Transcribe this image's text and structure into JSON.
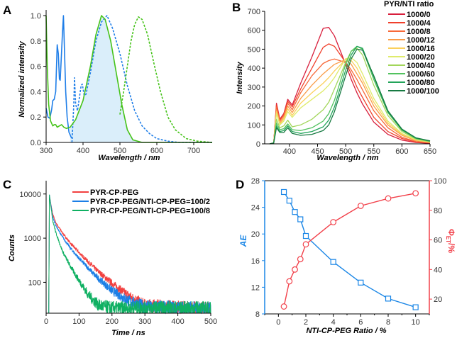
{
  "chart_data": [
    {
      "panel": "A",
      "type": "line",
      "xlabel": "Wavelength / nm",
      "ylabel": "Normalized intensity",
      "xlim": [
        300,
        750
      ],
      "ylim": [
        0,
        1.0
      ],
      "xticks": [
        300,
        400,
        500,
        600,
        700
      ],
      "yticks": [
        "0.0",
        "0.2",
        "0.4",
        "0.6",
        "0.8",
        "1.0"
      ],
      "colors": {
        "blue": "#1f7ee8",
        "green": "#46c31a",
        "fill": "#daeefa"
      },
      "series": [
        {
          "name": "blue-solid",
          "style": "solid",
          "color": "#1f7ee8",
          "x": [
            300,
            305,
            310,
            315,
            318,
            322,
            326,
            330,
            333,
            336,
            338,
            340,
            344,
            347,
            350,
            353,
            357,
            362,
            368,
            372
          ],
          "y": [
            0.27,
            0.2,
            0.19,
            0.26,
            0.33,
            0.34,
            0.4,
            0.77,
            0.7,
            0.5,
            0.49,
            0.6,
            0.85,
            1.0,
            0.7,
            0.4,
            0.2,
            0.08,
            0.04,
            0.03
          ]
        },
        {
          "name": "blue-dashed",
          "style": "dashed",
          "color": "#1f7ee8",
          "x": [
            370,
            375,
            377,
            380,
            385,
            390,
            395,
            398,
            403,
            408,
            420,
            435,
            450,
            465,
            480,
            500,
            520,
            540,
            560,
            580,
            600,
            630,
            660,
            750
          ],
          "y": [
            0.0,
            0.3,
            0.51,
            0.3,
            0.25,
            0.35,
            0.45,
            0.46,
            0.37,
            0.38,
            0.55,
            0.8,
            0.95,
            1.0,
            0.9,
            0.7,
            0.45,
            0.25,
            0.13,
            0.07,
            0.03,
            0.01,
            0.0,
            0.0
          ]
        },
        {
          "name": "green-solid",
          "style": "solid",
          "color": "#46c31a",
          "filled_from": 362,
          "x": [
            300,
            303,
            307,
            312,
            318,
            322,
            326,
            330,
            336,
            342,
            348,
            355,
            365,
            380,
            400,
            420,
            435,
            450,
            460,
            475,
            490,
            505,
            520,
            535,
            560,
            750
          ],
          "y": [
            1.0,
            0.6,
            0.3,
            0.17,
            0.13,
            0.14,
            0.14,
            0.12,
            0.13,
            0.14,
            0.12,
            0.11,
            0.12,
            0.18,
            0.33,
            0.6,
            0.85,
            1.0,
            0.97,
            0.8,
            0.55,
            0.3,
            0.1,
            0.02,
            0.0,
            0.0
          ]
        },
        {
          "name": "green-dashed",
          "style": "dashed",
          "color": "#46c31a",
          "x": [
            500,
            510,
            520,
            530,
            540,
            550,
            560,
            575,
            590,
            610,
            630,
            650,
            680,
            710,
            750
          ],
          "y": [
            0.22,
            0.4,
            0.6,
            0.8,
            0.93,
            0.99,
            0.97,
            0.85,
            0.65,
            0.4,
            0.2,
            0.1,
            0.03,
            0.01,
            0.0
          ]
        }
      ]
    },
    {
      "panel": "B",
      "type": "line",
      "xlabel": "Wavelength / nm",
      "ylabel": "Intensity",
      "xlim": [
        356,
        650
      ],
      "ylim": [
        0,
        700
      ],
      "xticks": [
        400,
        450,
        500,
        550,
        600,
        650
      ],
      "yticks": [
        0,
        100,
        200,
        300,
        400,
        500,
        600,
        700
      ],
      "legend_title": "PYR/NTI ratio",
      "legend_position": "top-right",
      "x": [
        365,
        372,
        377,
        383,
        390,
        397,
        405,
        420,
        440,
        460,
        470,
        480,
        500,
        510,
        520,
        530,
        550,
        575,
        600,
        625,
        650
      ],
      "series": [
        {
          "name": "1000/0",
          "color": "#d81e3c",
          "values": [
            0,
            5,
            215,
            130,
            160,
            235,
            205,
            320,
            460,
            610,
            615,
            570,
            420,
            340,
            270,
            210,
            115,
            50,
            20,
            7,
            3
          ]
        },
        {
          "name": "1000/4",
          "color": "#f0402c",
          "values": [
            0,
            5,
            205,
            125,
            155,
            225,
            195,
            290,
            400,
            510,
            528,
            515,
            430,
            370,
            300,
            245,
            140,
            65,
            28,
            10,
            5
          ]
        },
        {
          "name": "1000/8",
          "color": "#f76a3a",
          "values": [
            0,
            5,
            195,
            120,
            150,
            215,
            180,
            270,
            360,
            425,
            440,
            448,
            430,
            390,
            340,
            285,
            175,
            85,
            35,
            12,
            6
          ]
        },
        {
          "name": "1000/12",
          "color": "#f99c48",
          "values": [
            0,
            5,
            180,
            110,
            140,
            200,
            165,
            240,
            310,
            370,
            395,
            420,
            445,
            420,
            370,
            320,
            200,
            100,
            45,
            17,
            8
          ]
        },
        {
          "name": "1000/16",
          "color": "#fbd05c",
          "values": [
            0,
            5,
            170,
            105,
            130,
            185,
            150,
            215,
            270,
            320,
            350,
            385,
            445,
            440,
            400,
            340,
            220,
            110,
            50,
            20,
            9
          ]
        },
        {
          "name": "1000/20",
          "color": "#dfeb6c",
          "values": [
            0,
            5,
            160,
            100,
            120,
            170,
            140,
            190,
            235,
            280,
            310,
            350,
            450,
            455,
            430,
            370,
            240,
            120,
            55,
            22,
            10
          ]
        },
        {
          "name": "1000/40",
          "color": "#a2d65a",
          "values": [
            0,
            5,
            130,
            85,
            95,
            125,
            90,
            100,
            130,
            180,
            220,
            290,
            430,
            490,
            505,
            470,
            310,
            150,
            65,
            25,
            12
          ]
        },
        {
          "name": "1000/60",
          "color": "#52c25e",
          "values": [
            0,
            5,
            110,
            75,
            80,
            105,
            75,
            70,
            85,
            120,
            160,
            230,
            420,
            490,
            515,
            500,
            340,
            165,
            72,
            28,
            14
          ]
        },
        {
          "name": "1000/80",
          "color": "#22a45a",
          "values": [
            0,
            5,
            95,
            65,
            70,
            95,
            65,
            55,
            65,
            90,
            125,
            195,
            390,
            470,
            515,
            505,
            355,
            170,
            75,
            30,
            15
          ]
        },
        {
          "name": "1000/100",
          "color": "#177a42",
          "values": [
            0,
            5,
            85,
            60,
            60,
            85,
            55,
            45,
            50,
            70,
            100,
            170,
            360,
            450,
            500,
            495,
            360,
            175,
            78,
            32,
            16
          ]
        }
      ]
    },
    {
      "panel": "C",
      "type": "line",
      "xlabel": "Time / ns",
      "ylabel": "Counts",
      "yscale": "log",
      "xlim": [
        0,
        500
      ],
      "ylim": [
        20,
        20000
      ],
      "xticks": [
        0,
        100,
        200,
        300,
        400,
        500
      ],
      "yticks": [
        100,
        1000,
        10000
      ],
      "legend_position": "top-right",
      "series": [
        {
          "name": "PYR-CP-PEG",
          "color": "#f2403f",
          "t": [
            8,
            10,
            20,
            30,
            50,
            75,
            100,
            150,
            200,
            250,
            300,
            500
          ],
          "counts": [
            20,
            9000,
            3500,
            2200,
            1300,
            750,
            470,
            200,
            95,
            50,
            30,
            25
          ]
        },
        {
          "name": "PYR-CP-PEG/NTI-CP-PEG=100/2",
          "color": "#1c7fe6",
          "t": [
            8,
            10,
            20,
            30,
            50,
            75,
            100,
            150,
            200,
            250,
            300,
            500
          ],
          "counts": [
            20,
            9500,
            3000,
            1900,
            1050,
            580,
            350,
            140,
            65,
            38,
            28,
            25
          ]
        },
        {
          "name": "PYR-CP-PEG/NTI-CP-PEG=100/8",
          "color": "#0fb062",
          "t": [
            8,
            10,
            20,
            30,
            50,
            75,
            100,
            130,
            160,
            200,
            500
          ],
          "counts": [
            20,
            9500,
            2500,
            1300,
            500,
            220,
            110,
            50,
            30,
            26,
            26
          ]
        }
      ]
    },
    {
      "panel": "D",
      "type": "line",
      "xlabel": "NTI-CP-PEG Ratio / %",
      "ylabel_left": "AE",
      "ylabel_right": "Φ",
      "ylabel_right_sub": "ET",
      "ylabel_right_suffix": "/%",
      "xlim": [
        -1,
        11
      ],
      "ylim_left": [
        8,
        28
      ],
      "ylim_right": [
        10,
        100
      ],
      "xticks": [
        0,
        2,
        4,
        6,
        8,
        10
      ],
      "yticks_left": [
        8,
        12,
        16,
        20,
        24,
        28
      ],
      "yticks_right": [
        20,
        40,
        60,
        80,
        100
      ],
      "x": [
        0.4,
        0.8,
        1.2,
        1.6,
        2,
        4,
        6,
        8,
        10
      ],
      "series": [
        {
          "name": "AE",
          "axis": "left",
          "marker": "square",
          "color": "#1a86e6",
          "values": [
            26.3,
            25.0,
            23.3,
            22.2,
            19.7,
            15.8,
            12.7,
            10.3,
            9.0
          ]
        },
        {
          "name": "ΦET",
          "axis": "right",
          "marker": "circle",
          "color": "#f2404a",
          "values": [
            15,
            32,
            40,
            47,
            57,
            72,
            83,
            88,
            91.5
          ]
        }
      ]
    }
  ],
  "panel_labels": [
    "A",
    "B",
    "C",
    "D"
  ]
}
